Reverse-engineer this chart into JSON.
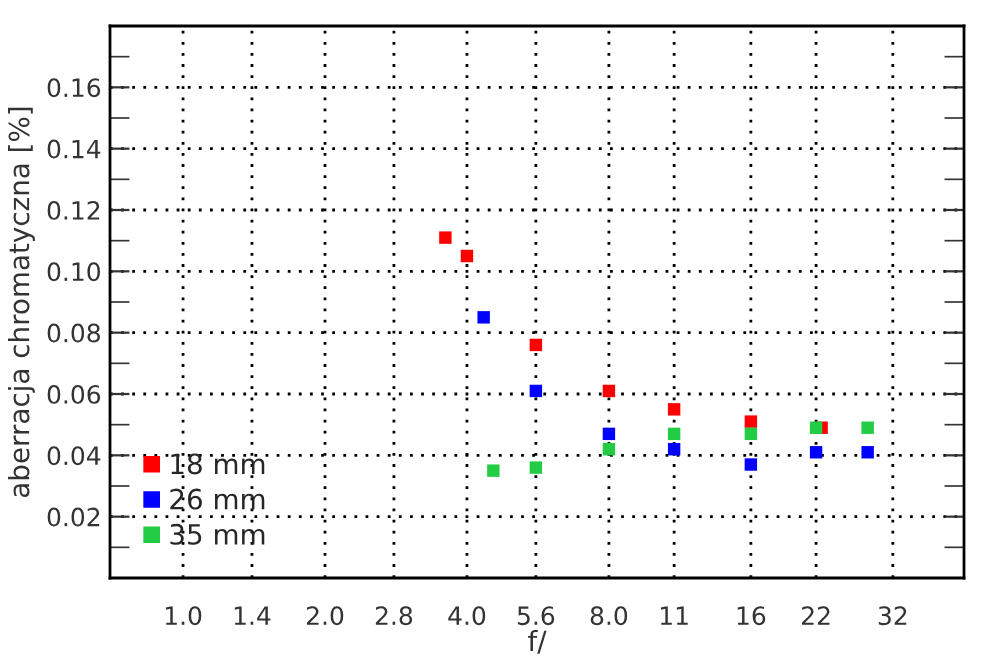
{
  "chart_data": {
    "type": "scatter",
    "xlabel": "f/",
    "ylabel": "aberracja chromatyczna [%]",
    "log": "x",
    "marker": "square",
    "grid": true,
    "legend": "bottom left",
    "xlim": [
      0.7,
      45.3
    ],
    "xticks": [
      {
        "value": 1,
        "label": "1.0"
      },
      {
        "value": 1.4,
        "label": "1.4"
      },
      {
        "value": 2,
        "label": "2.0"
      },
      {
        "value": 2.8,
        "label": "2.8"
      },
      {
        "value": 4,
        "label": "4.0"
      },
      {
        "value": 5.6,
        "label": "5.6"
      },
      {
        "value": 8,
        "label": "8.0"
      },
      11,
      16,
      22,
      {
        "value": 32,
        "label": "32"
      }
    ],
    "ylim": [
      0,
      0.18
    ],
    "yticks": [
      {
        "value": 0.01,
        "label": null
      },
      {
        "value": 0.02,
        "label": "0.02"
      },
      {
        "value": 0.03,
        "label": null
      },
      {
        "value": 0.04,
        "label": "0.04"
      },
      {
        "value": 0.05,
        "label": null
      },
      {
        "value": 0.06,
        "label": "0.06"
      },
      {
        "value": 0.07,
        "label": null
      },
      {
        "value": 0.08,
        "label": "0.08"
      },
      {
        "value": 0.09,
        "label": null
      },
      {
        "value": 0.1,
        "label": "0.10"
      },
      {
        "value": 0.11,
        "label": null
      },
      {
        "value": 0.12,
        "label": "0.12"
      },
      {
        "value": 0.13,
        "label": null
      },
      {
        "value": 0.14,
        "label": "0.14"
      },
      {
        "value": 0.15,
        "label": null
      },
      {
        "value": 0.16,
        "label": "0.16"
      },
      {
        "value": 0.17,
        "label": null
      }
    ],
    "series": [
      {
        "name": "18 mm",
        "color": "#ff0000",
        "x": [
          3.6,
          4,
          5.6,
          8,
          11,
          16,
          22.6
        ],
        "values": [
          0.111,
          0.105,
          0.076,
          0.061,
          0.055,
          0.051,
          0.049
        ]
      },
      {
        "name": "26 mm",
        "color": "#0000ff",
        "x": [
          4.34,
          5.6,
          8,
          11,
          16,
          22,
          28.3
        ],
        "values": [
          0.085,
          0.061,
          0.047,
          0.042,
          0.037,
          0.041,
          0.041
        ]
      },
      {
        "name": "35 mm",
        "color": "#22cc44",
        "x": [
          4.55,
          5.6,
          8,
          11,
          16,
          22,
          28.3
        ],
        "values": [
          0.035,
          0.036,
          0.042,
          0.047,
          0.047,
          0.049,
          0.049
        ]
      }
    ]
  }
}
